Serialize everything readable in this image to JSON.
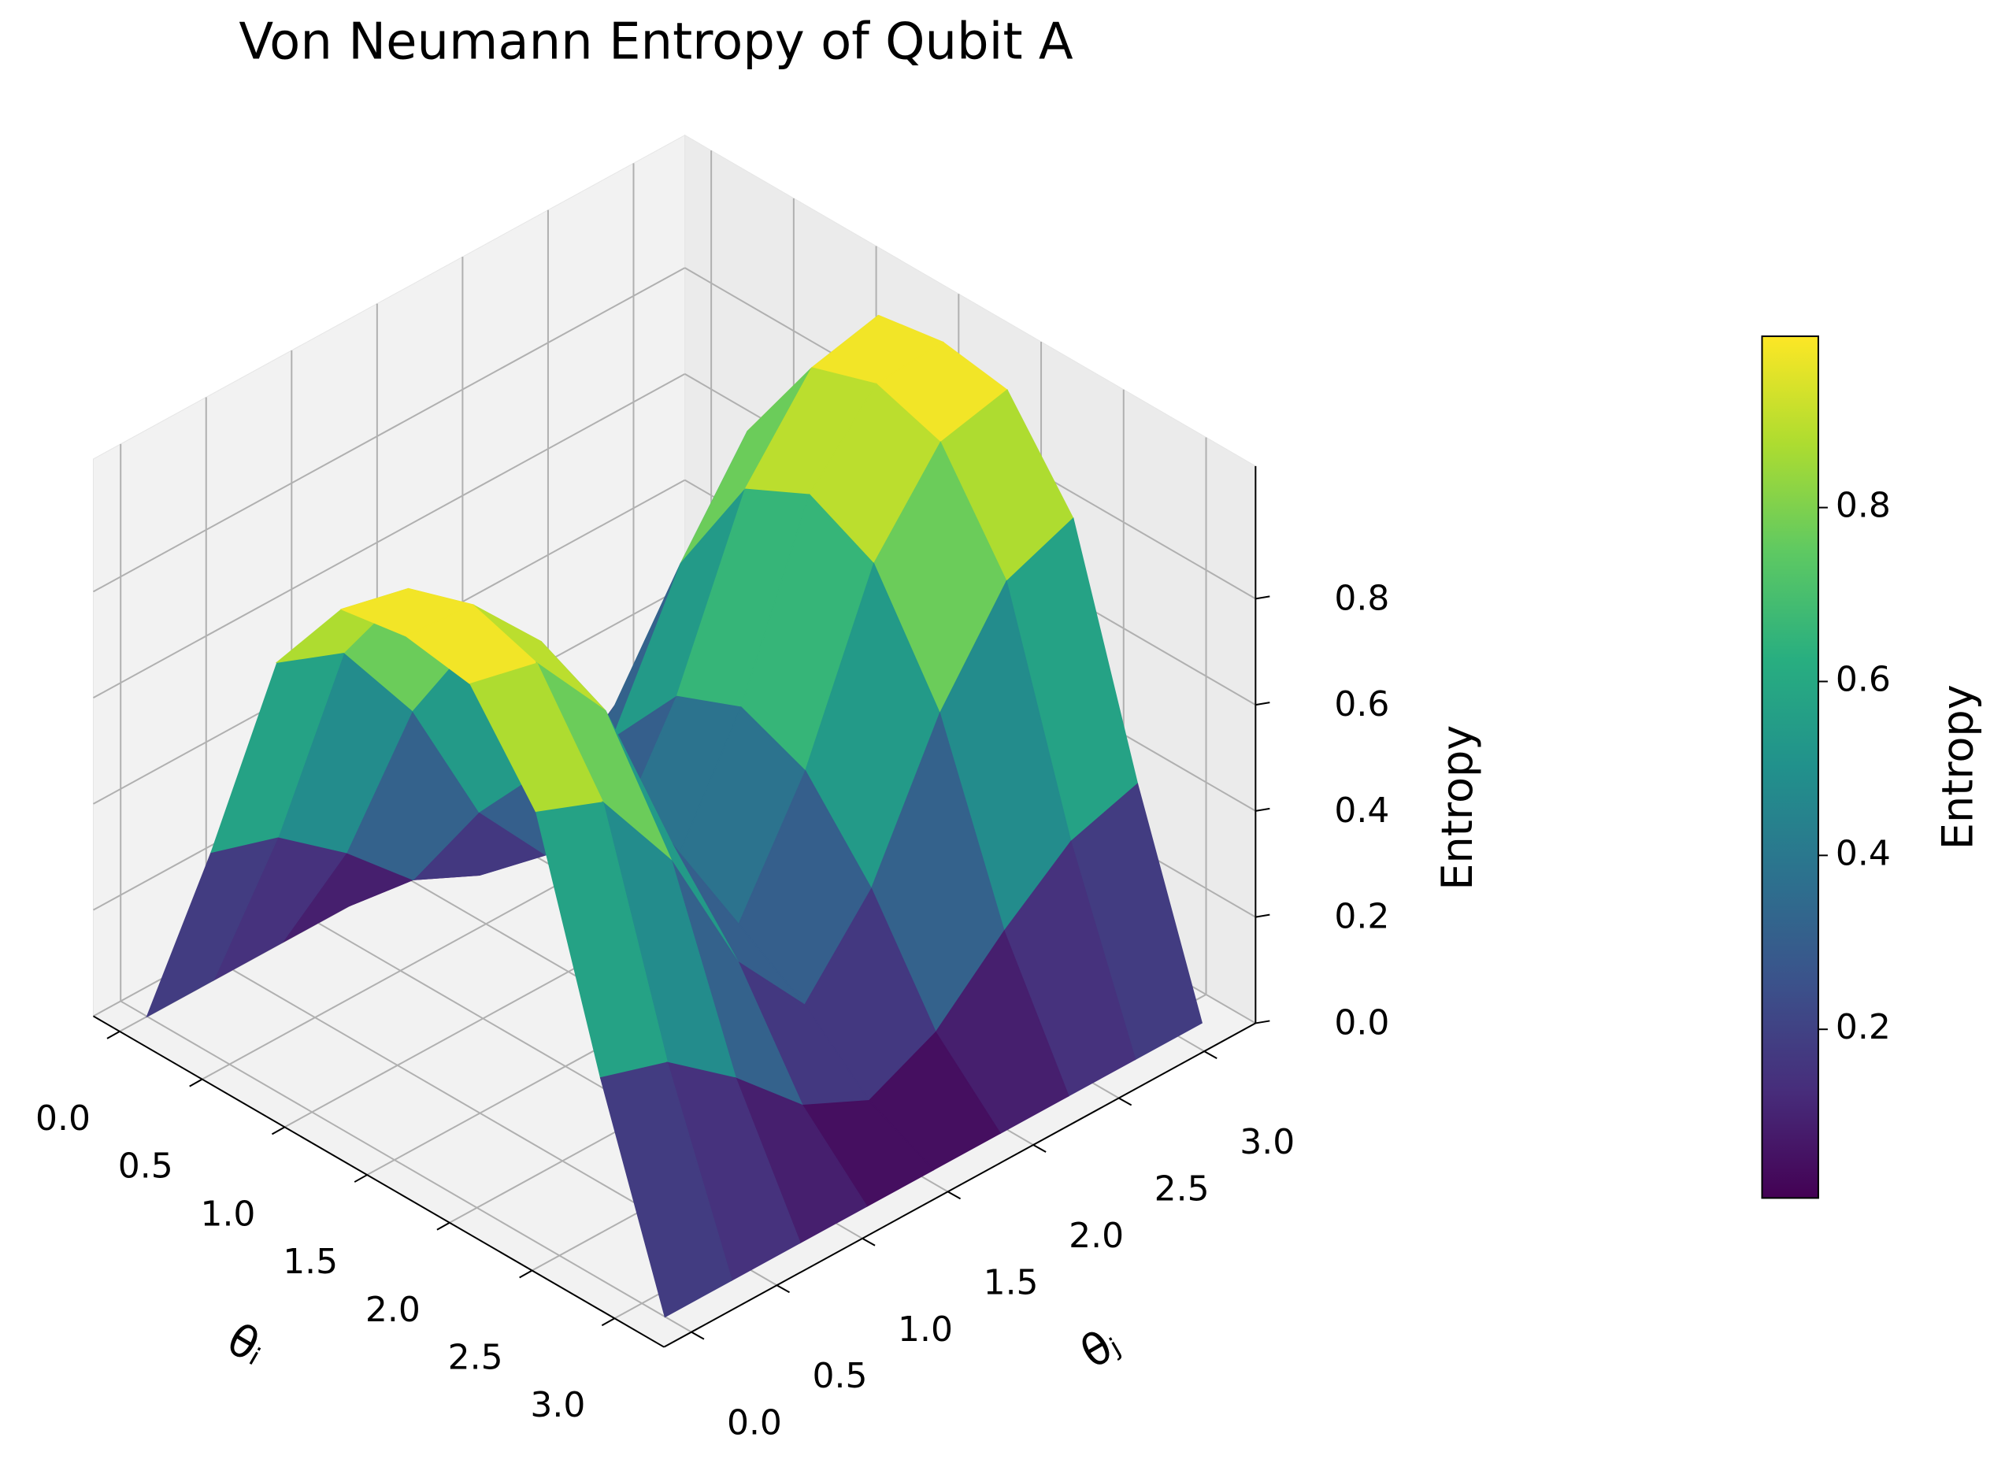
{
  "chart_data": {
    "type": "surface",
    "title": "Von Neumann Entropy of Qubit A",
    "xlabel": "θᵢ",
    "ylabel": "θⱼ",
    "zlabel": "Entropy",
    "colorbar_label": "Entropy",
    "colormap": "viridis",
    "x": [
      0,
      0.39,
      0.79,
      1.18,
      1.57,
      1.96,
      2.36,
      2.75,
      3.14
    ],
    "y": [
      0,
      0.39,
      0.79,
      1.18,
      1.57,
      1.96,
      2.36,
      2.75,
      3.14
    ],
    "z": [
      [
        0,
        0,
        0,
        0,
        0,
        0,
        0,
        0,
        0
      ],
      [
        0.38,
        0.34,
        0.24,
        0.12,
        0.06,
        0.12,
        0.24,
        0.34,
        0.38
      ],
      [
        0.81,
        0.76,
        0.58,
        0.32,
        0.17,
        0.32,
        0.58,
        0.76,
        0.81
      ],
      [
        0.98,
        0.95,
        0.79,
        0.47,
        0.25,
        0.47,
        0.79,
        0.95,
        0.98
      ],
      [
        1.0,
        0.99,
        0.85,
        0.52,
        0.29,
        0.52,
        0.85,
        0.99,
        1.0
      ],
      [
        0.98,
        0.95,
        0.79,
        0.47,
        0.25,
        0.47,
        0.79,
        0.95,
        0.98
      ],
      [
        0.81,
        0.76,
        0.58,
        0.32,
        0.17,
        0.32,
        0.58,
        0.76,
        0.81
      ],
      [
        0.38,
        0.34,
        0.24,
        0.12,
        0.06,
        0.12,
        0.24,
        0.34,
        0.38
      ],
      [
        0,
        0,
        0,
        0,
        0,
        0,
        0,
        0,
        0
      ]
    ],
    "xlim": [
      -0.16,
      3.3
    ],
    "ylim": [
      -0.16,
      3.3
    ],
    "zlim": [
      0,
      1.05
    ],
    "xticks": [
      {
        "value": 0,
        "label": "0.0"
      },
      0.5,
      {
        "value": 1,
        "label": "1.0"
      },
      1.5,
      {
        "value": 2,
        "label": "2.0"
      },
      2.5,
      {
        "value": 3,
        "label": "3.0"
      }
    ],
    "yticks": [
      {
        "value": 0,
        "label": "0.0"
      },
      0.5,
      {
        "value": 1,
        "label": "1.0"
      },
      1.5,
      {
        "value": 2,
        "label": "2.0"
      },
      2.5,
      {
        "value": 3,
        "label": "3.0"
      }
    ],
    "zticks": [
      {
        "value": 0,
        "label": "0.0"
      },
      0.2,
      0.4,
      0.6,
      0.8
    ],
    "clim": [
      0.006,
      0.997
    ],
    "colorbar_ticks": [
      0.2,
      0.4,
      0.6,
      0.8
    ],
    "grid": true
  }
}
